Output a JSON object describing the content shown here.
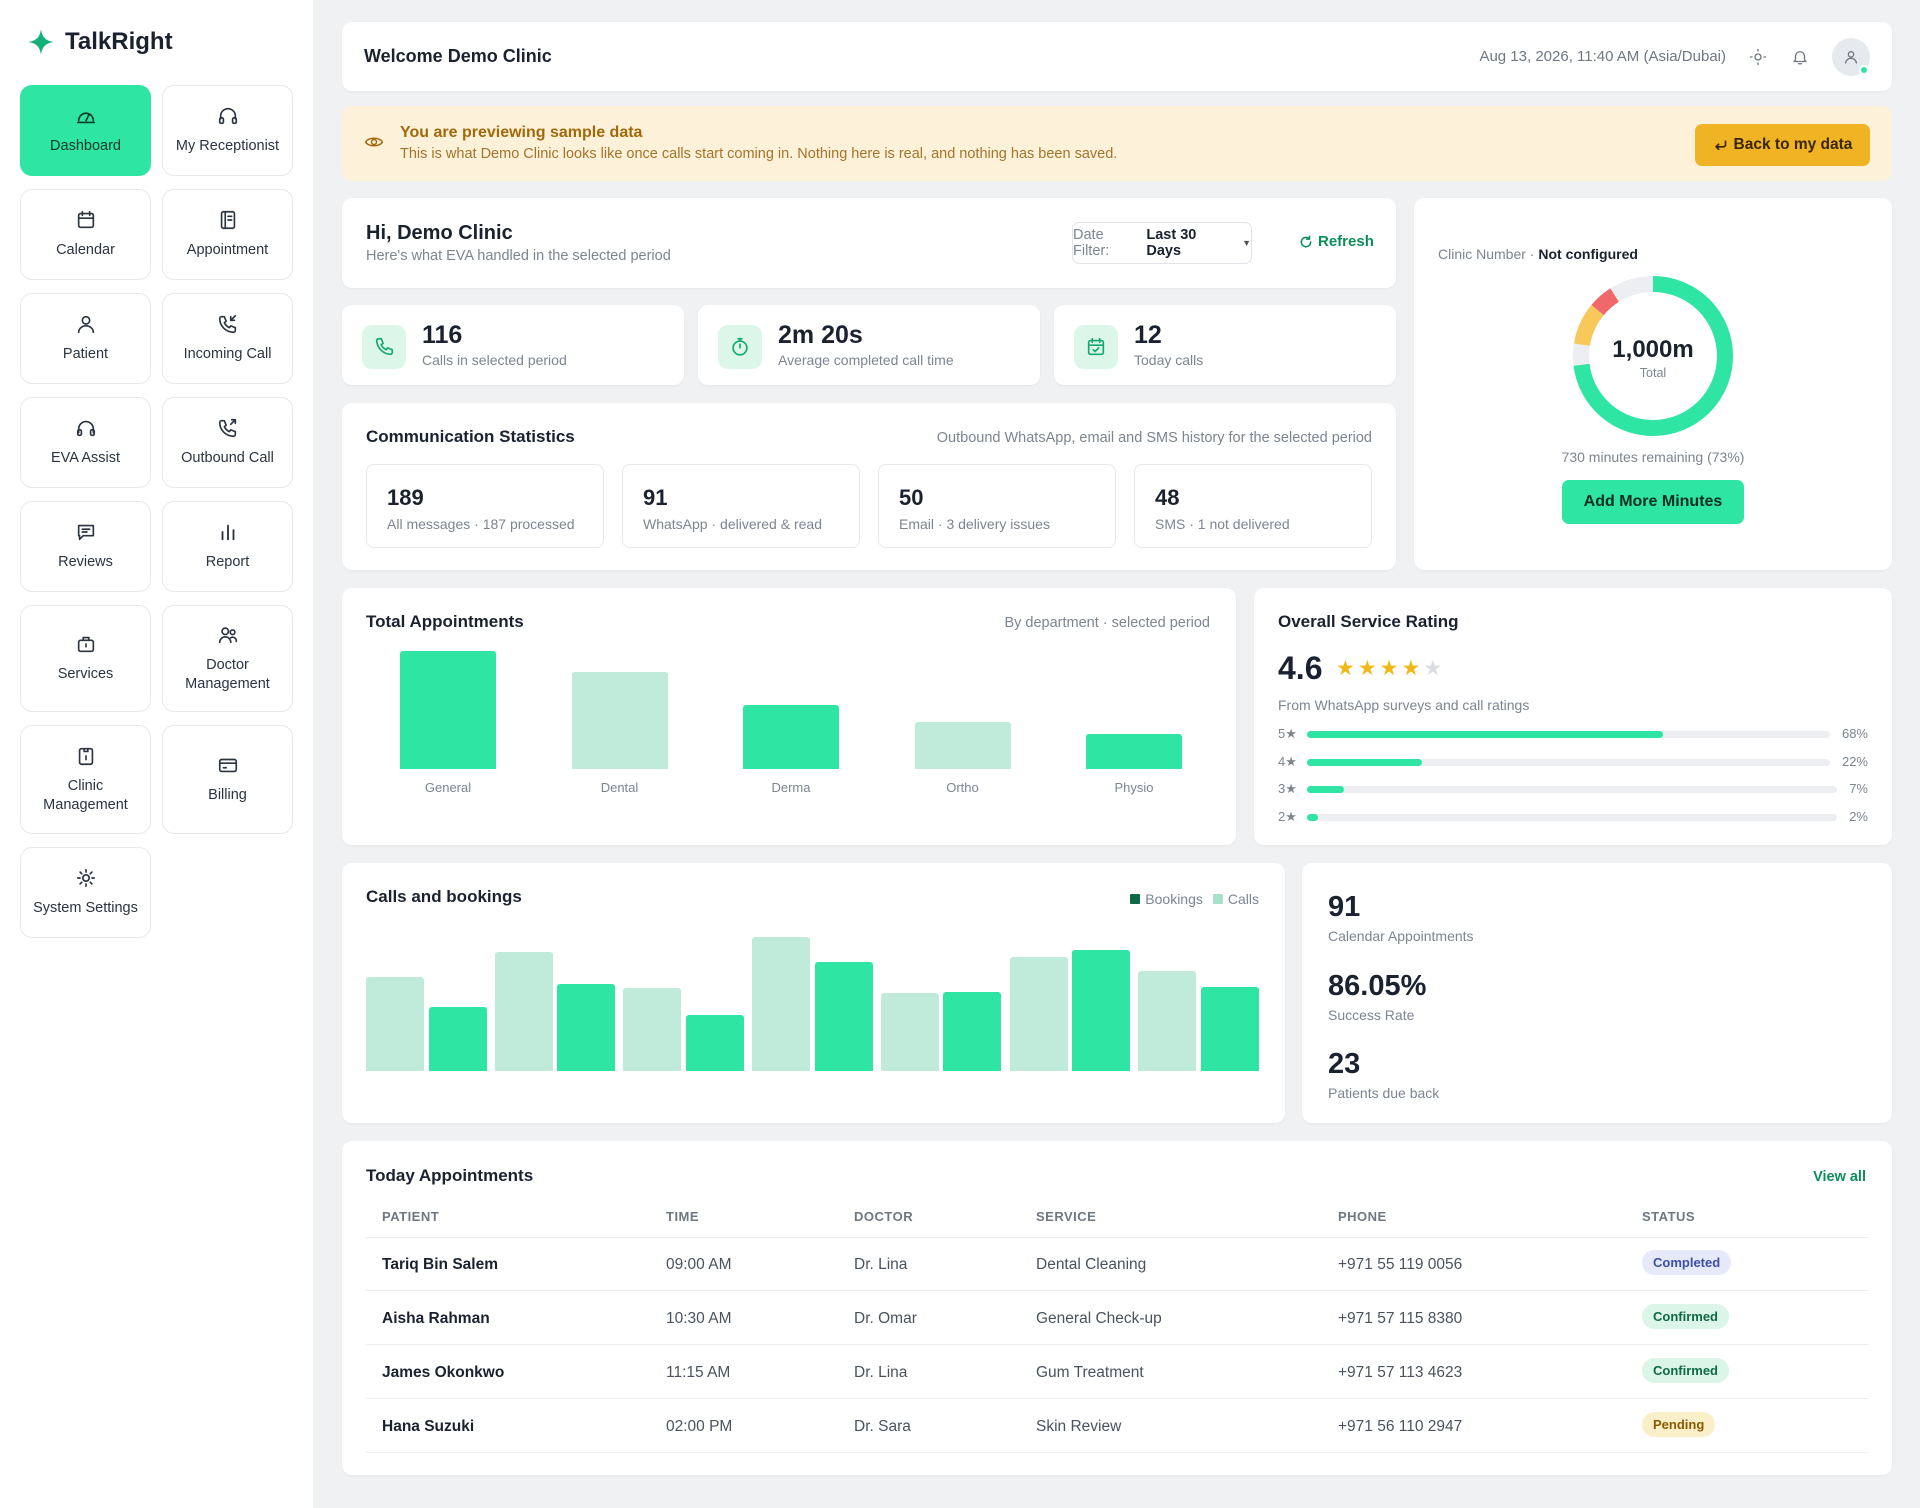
{
  "brand": {
    "name": "TalkRight"
  },
  "nav": [
    {
      "label": "Dashboard",
      "icon": "dashboard-icon",
      "active": true
    },
    {
      "label": "My Receptionist",
      "icon": "headset-icon"
    },
    {
      "label": "Calendar",
      "icon": "calendar-icon"
    },
    {
      "label": "Appointment",
      "icon": "appointment-book-icon"
    },
    {
      "label": "Patient",
      "icon": "person-icon"
    },
    {
      "label": "Incoming Call",
      "icon": "incoming-call-icon"
    },
    {
      "label": "EVA Assist",
      "icon": "headphones-icon"
    },
    {
      "label": "Outbound Call",
      "icon": "outbound-call-icon"
    },
    {
      "label": "Reviews",
      "icon": "chat-icon"
    },
    {
      "label": "Report",
      "icon": "bar-chart-icon"
    },
    {
      "label": "Services",
      "icon": "briefcase-icon"
    },
    {
      "label": "Doctor Management",
      "icon": "users-icon"
    },
    {
      "label": "Clinic Management",
      "icon": "clinic-badge-icon"
    },
    {
      "label": "Billing",
      "icon": "card-icon"
    },
    {
      "label": "System Settings",
      "icon": "gear-icon"
    }
  ],
  "header": {
    "welcome": "Welcome Demo Clinic",
    "datetime": "Aug 13, 2026, 11:40 AM (Asia/Dubai)"
  },
  "banner": {
    "title": "You are previewing sample data",
    "text": "This is what Demo Clinic looks like once calls start coming in. Nothing here is real, and nothing has been saved.",
    "button": "Back to my data"
  },
  "hi": {
    "title": "Hi, Demo Clinic",
    "subtitle": "Here's what EVA handled in the selected period",
    "filter_label": "Date Filter:",
    "filter_value": "Last 30 Days",
    "refresh": "Refresh"
  },
  "kpis": [
    {
      "value": "116",
      "label": "Calls in selected period",
      "icon": "phone-icon"
    },
    {
      "value": "2m 20s",
      "label": "Average completed call time",
      "icon": "stopwatch-icon"
    },
    {
      "value": "12",
      "label": "Today calls",
      "icon": "calendar-check-icon"
    }
  ],
  "communication": {
    "title": "Communication Statistics",
    "subtitle": "Outbound WhatsApp, email and SMS history for the selected period",
    "boxes": [
      {
        "value": "189",
        "label": "All messages · 187 processed"
      },
      {
        "value": "91",
        "label": "WhatsApp · delivered & read"
      },
      {
        "value": "50",
        "label": "Email · 3 delivery issues"
      },
      {
        "value": "48",
        "label": "SMS · 1 not delivered"
      }
    ]
  },
  "minutes": {
    "clinic_label": "Clinic Number ·",
    "clinic_value": "Not configured",
    "total": "1,000m",
    "total_caption": "Total",
    "remaining": "730 minutes remaining (73%)",
    "remaining_fraction": 0.73,
    "colors": {
      "remaining": "#2ee5a3",
      "yellow": "#f8c95a",
      "red": "#f2686a",
      "empty": "#eceef1"
    },
    "button": "Add More Minutes"
  },
  "chart_data": [
    {
      "type": "bar",
      "title": "Total Appointments",
      "subtitle": "By department · selected period",
      "categories": [
        "General",
        "Dental",
        "Derma",
        "Ortho",
        "Physio"
      ],
      "values": [
        100,
        82,
        54,
        40,
        30
      ],
      "colors": [
        "#2ee5a3",
        "#c0ead9",
        "#2ee5a3",
        "#c0ead9",
        "#2ee5a3"
      ]
    },
    {
      "type": "bar",
      "title": "Calls and bookings",
      "legend": "top-right",
      "series": [
        {
          "name": "Calls",
          "color": "#c0ead9",
          "values": [
            70,
            89,
            62,
            100,
            58,
            85,
            75
          ]
        },
        {
          "name": "Bookings",
          "color": "#2ee5a3",
          "values": [
            48,
            65,
            42,
            81,
            59,
            90,
            63
          ]
        }
      ]
    }
  ],
  "legend_labels": {
    "bookings": "Bookings",
    "calls": "Calls"
  },
  "rating": {
    "title": "Overall Service Rating",
    "value": "4.6",
    "stars": 4,
    "subtitle": "From WhatsApp surveys and call ratings",
    "rows": [
      {
        "star": "5★",
        "pct": "68%",
        "fraction": 0.68
      },
      {
        "star": "4★",
        "pct": "22%",
        "fraction": 0.22
      },
      {
        "star": "3★",
        "pct": "7%",
        "fraction": 0.07
      },
      {
        "star": "2★",
        "pct": "2%",
        "fraction": 0.02
      }
    ]
  },
  "stats": [
    {
      "value": "91",
      "label": "Calendar Appointments"
    },
    {
      "value": "86.05%",
      "label": "Success Rate"
    },
    {
      "value": "23",
      "label": "Patients due back"
    }
  ],
  "today": {
    "title": "Today Appointments",
    "view_all": "View all",
    "columns": [
      "PATIENT",
      "TIME",
      "DOCTOR",
      "SERVICE",
      "PHONE",
      "STATUS"
    ],
    "rows": [
      {
        "patient": "Tariq Bin Salem",
        "time": "09:00 AM",
        "doctor": "Dr. Lina",
        "service": "Dental Cleaning",
        "phone": "+971 55 119 0056",
        "status": "Completed"
      },
      {
        "patient": "Aisha Rahman",
        "time": "10:30 AM",
        "doctor": "Dr. Omar",
        "service": "General Check-up",
        "phone": "+971 57 115 8380",
        "status": "Confirmed"
      },
      {
        "patient": "James Okonkwo",
        "time": "11:15 AM",
        "doctor": "Dr. Lina",
        "service": "Gum Treatment",
        "phone": "+971 57 113 4623",
        "status": "Confirmed"
      },
      {
        "patient": "Hana Suzuki",
        "time": "02:00 PM",
        "doctor": "Dr. Sara",
        "service": "Skin Review",
        "phone": "+971 56 110 2947",
        "status": "Pending"
      }
    ]
  }
}
